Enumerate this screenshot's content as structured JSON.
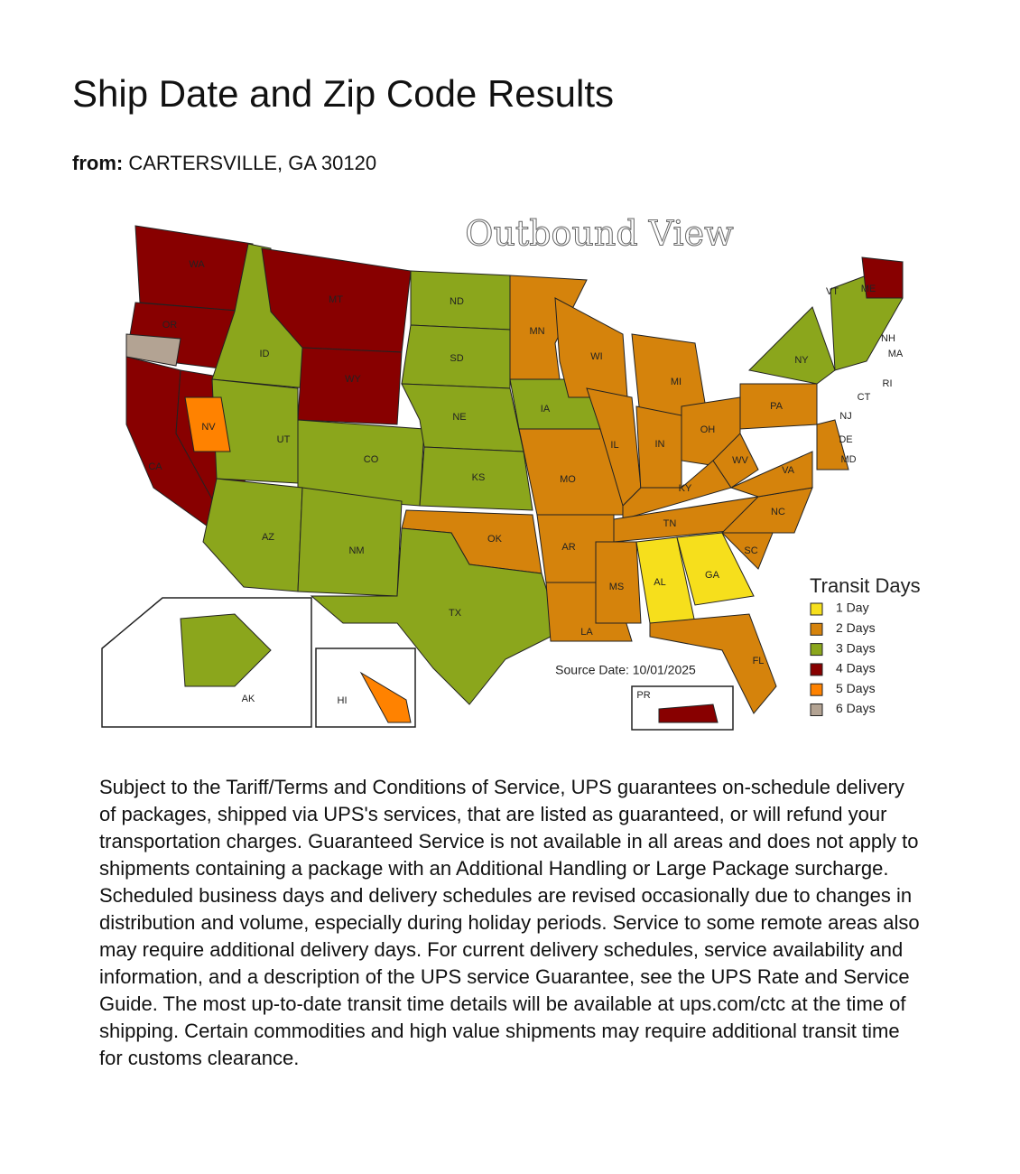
{
  "header": {
    "title": "Ship Date and Zip Code Results"
  },
  "origin": {
    "label": "from:",
    "value": "CARTERSVILLE, GA 30120"
  },
  "map": {
    "title": "Outbound View",
    "state_labels": [
      "WA",
      "OR",
      "CA",
      "NV",
      "ID",
      "MT",
      "WY",
      "UT",
      "CO",
      "AZ",
      "NM",
      "ND",
      "SD",
      "NE",
      "KS",
      "OK",
      "TX",
      "MN",
      "IA",
      "MO",
      "AR",
      "LA",
      "WI",
      "IL",
      "MS",
      "AL",
      "GA",
      "FL",
      "TN",
      "KY",
      "IN",
      "MI",
      "OH",
      "WV",
      "VA",
      "NC",
      "SC",
      "PA",
      "NY",
      "VT",
      "ME",
      "NH",
      "MA",
      "RI",
      "CT",
      "NJ",
      "DE",
      "MD",
      "AK",
      "HI",
      "PR"
    ],
    "source_date": "Source Date: 10/01/2025",
    "legend": {
      "title": "Transit Days",
      "items": [
        {
          "label": "1 Day",
          "color": "#f6df1c"
        },
        {
          "label": "2 Days",
          "color": "#d5830c"
        },
        {
          "label": "3 Days",
          "color": "#8ba61c"
        },
        {
          "label": "4 Days",
          "color": "#880000"
        },
        {
          "label": "5 Days",
          "color": "#ff8200"
        },
        {
          "label": "6 Days",
          "color": "#b3a393"
        }
      ]
    }
  },
  "disclaimer": "Subject to the Tariff/Terms and Conditions of Service, UPS guarantees on-schedule delivery of packages, shipped via UPS's services, that are listed as guaranteed, or will refund your transportation charges. Guaranteed Service is not available in all areas and does not apply to shipments containing a package with an Additional Handling or Large Package surcharge. Scheduled business days and delivery schedules are revised occasionally due to changes in distribution and volume, especially during holiday periods. Service to some remote areas also may require additional delivery days. For current delivery schedules, service availability and information, and a description of the UPS service Guarantee, see the UPS Rate and Service Guide. The most up-to-date transit time details will be available at ups.com/ctc at the time of shipping. Certain commodities and high value shipments may require additional transit time for customs clearance."
}
